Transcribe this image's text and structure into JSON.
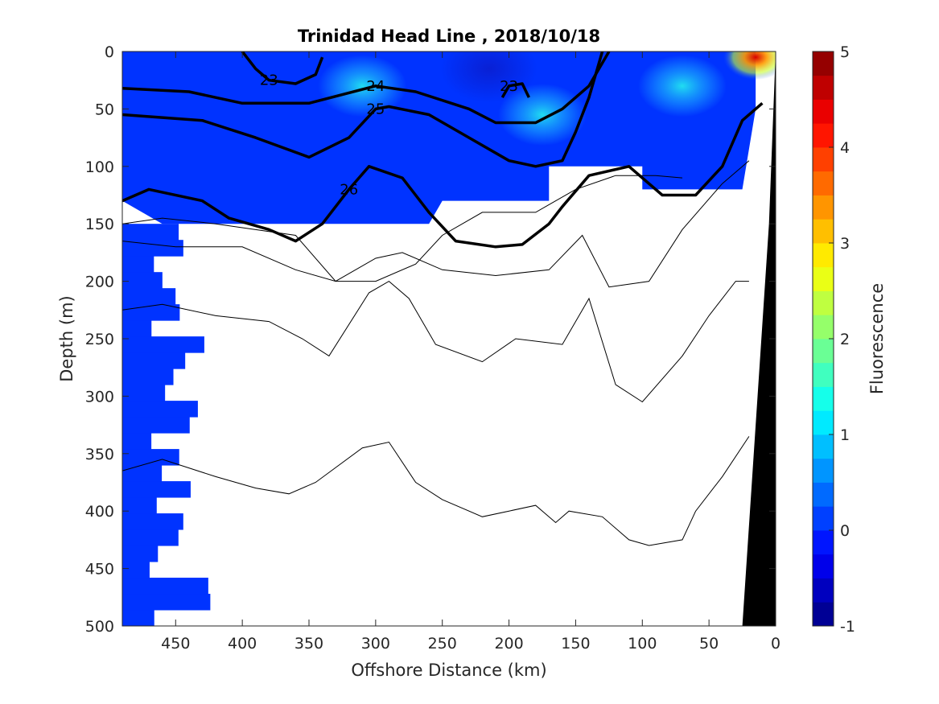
{
  "chart_data": {
    "type": "heatmap",
    "title": "Trinidad Head Line , 2018/10/18",
    "xlabel": "Offshore Distance (km)",
    "ylabel": "Depth (m)",
    "colorbar_label": "Fluorescence",
    "xlim": [
      490,
      0
    ],
    "ylim": [
      0,
      500
    ],
    "clim": [
      -1,
      5
    ],
    "x_ticks": [
      450,
      400,
      350,
      300,
      250,
      200,
      150,
      100,
      50,
      0
    ],
    "y_ticks": [
      0,
      50,
      100,
      150,
      200,
      250,
      300,
      350,
      400,
      450,
      500
    ],
    "colorbar_ticks": [
      -1,
      0,
      1,
      2,
      3,
      4,
      5
    ],
    "grid": false,
    "fluorescence_field": {
      "base_value": 0.05,
      "coverage_bottom_depth": [
        [
          490,
          130
        ],
        [
          460,
          150
        ],
        [
          440,
          150
        ],
        [
          260,
          150
        ],
        [
          250,
          130
        ],
        [
          170,
          130
        ],
        [
          170,
          100
        ],
        [
          100,
          100
        ],
        [
          100,
          120
        ],
        [
          25,
          120
        ],
        [
          15,
          50
        ]
      ],
      "deep_patch_region_x": [
        490,
        400
      ],
      "features": [
        {
          "x": 215,
          "depth": 15,
          "value": -0.3,
          "label": "low"
        },
        {
          "x": 175,
          "depth": 55,
          "value": 1.1,
          "label": "high"
        },
        {
          "x": 310,
          "depth": 30,
          "value": 0.9,
          "label": "high"
        },
        {
          "x": 70,
          "depth": 30,
          "value": 1.0,
          "label": "high"
        },
        {
          "x": 15,
          "depth": 5,
          "value": 4.8,
          "label": "max"
        }
      ]
    },
    "labeled_isopycnals": [
      {
        "level": "23",
        "points": [
          [
            400,
            0
          ],
          [
            390,
            15
          ],
          [
            380,
            25
          ],
          [
            360,
            28
          ],
          [
            345,
            20
          ],
          [
            340,
            5
          ]
        ]
      },
      {
        "level": "23",
        "points": [
          [
            205,
            40
          ],
          [
            200,
            30
          ],
          [
            190,
            28
          ],
          [
            185,
            40
          ]
        ]
      },
      {
        "level": "24",
        "points": [
          [
            490,
            32
          ],
          [
            440,
            35
          ],
          [
            400,
            45
          ],
          [
            350,
            45
          ],
          [
            300,
            30
          ],
          [
            270,
            35
          ],
          [
            230,
            50
          ],
          [
            210,
            62
          ],
          [
            180,
            62
          ],
          [
            160,
            50
          ],
          [
            140,
            30
          ],
          [
            125,
            0
          ]
        ]
      },
      {
        "level": "25",
        "points": [
          [
            490,
            55
          ],
          [
            430,
            60
          ],
          [
            390,
            75
          ],
          [
            350,
            92
          ],
          [
            320,
            75
          ],
          [
            300,
            50
          ],
          [
            290,
            48
          ],
          [
            260,
            55
          ],
          [
            230,
            75
          ],
          [
            200,
            95
          ],
          [
            180,
            100
          ],
          [
            160,
            95
          ],
          [
            150,
            70
          ],
          [
            140,
            40
          ],
          [
            130,
            0
          ]
        ]
      },
      {
        "level": "26",
        "points": [
          [
            490,
            130
          ],
          [
            470,
            120
          ],
          [
            430,
            130
          ],
          [
            410,
            145
          ],
          [
            380,
            155
          ],
          [
            360,
            165
          ],
          [
            340,
            150
          ],
          [
            320,
            120
          ],
          [
            305,
            100
          ],
          [
            280,
            110
          ],
          [
            260,
            140
          ],
          [
            240,
            165
          ],
          [
            210,
            170
          ],
          [
            190,
            168
          ],
          [
            170,
            150
          ],
          [
            160,
            135
          ],
          [
            140,
            108
          ],
          [
            110,
            100
          ],
          [
            85,
            125
          ],
          [
            60,
            125
          ],
          [
            40,
            100
          ],
          [
            25,
            60
          ],
          [
            10,
            45
          ]
        ]
      }
    ],
    "unlabeled_isopycnals": [
      [
        [
          490,
          150
        ],
        [
          460,
          145
        ],
        [
          420,
          150
        ],
        [
          360,
          160
        ],
        [
          330,
          200
        ],
        [
          300,
          200
        ],
        [
          270,
          185
        ],
        [
          250,
          160
        ],
        [
          220,
          140
        ],
        [
          180,
          140
        ],
        [
          150,
          120
        ],
        [
          120,
          108
        ],
        [
          90,
          108
        ],
        [
          70,
          110
        ]
      ],
      [
        [
          490,
          165
        ],
        [
          450,
          170
        ],
        [
          400,
          170
        ],
        [
          360,
          190
        ],
        [
          330,
          200
        ],
        [
          300,
          180
        ],
        [
          280,
          175
        ],
        [
          250,
          190
        ],
        [
          210,
          195
        ],
        [
          170,
          190
        ],
        [
          145,
          160
        ],
        [
          125,
          205
        ],
        [
          95,
          200
        ],
        [
          70,
          155
        ],
        [
          40,
          115
        ],
        [
          20,
          95
        ]
      ],
      [
        [
          490,
          225
        ],
        [
          460,
          220
        ],
        [
          420,
          230
        ],
        [
          380,
          235
        ],
        [
          355,
          250
        ],
        [
          335,
          265
        ],
        [
          305,
          210
        ],
        [
          290,
          200
        ],
        [
          275,
          215
        ],
        [
          255,
          255
        ],
        [
          220,
          270
        ],
        [
          195,
          250
        ],
        [
          160,
          255
        ],
        [
          140,
          215
        ],
        [
          120,
          290
        ],
        [
          100,
          305
        ],
        [
          70,
          265
        ],
        [
          50,
          230
        ],
        [
          30,
          200
        ],
        [
          20,
          200
        ]
      ],
      [
        [
          490,
          365
        ],
        [
          460,
          355
        ],
        [
          420,
          370
        ],
        [
          390,
          380
        ],
        [
          365,
          385
        ],
        [
          345,
          375
        ],
        [
          310,
          345
        ],
        [
          290,
          340
        ],
        [
          270,
          375
        ],
        [
          250,
          390
        ],
        [
          220,
          405
        ],
        [
          200,
          400
        ],
        [
          180,
          395
        ],
        [
          165,
          410
        ],
        [
          155,
          400
        ],
        [
          130,
          405
        ],
        [
          110,
          425
        ],
        [
          95,
          430
        ],
        [
          70,
          425
        ],
        [
          60,
          400
        ],
        [
          40,
          370
        ],
        [
          20,
          335
        ]
      ]
    ],
    "bathymetry": [
      [
        0,
        0
      ],
      [
        0,
        500
      ],
      [
        25,
        500
      ],
      [
        5,
        150
      ]
    ]
  }
}
